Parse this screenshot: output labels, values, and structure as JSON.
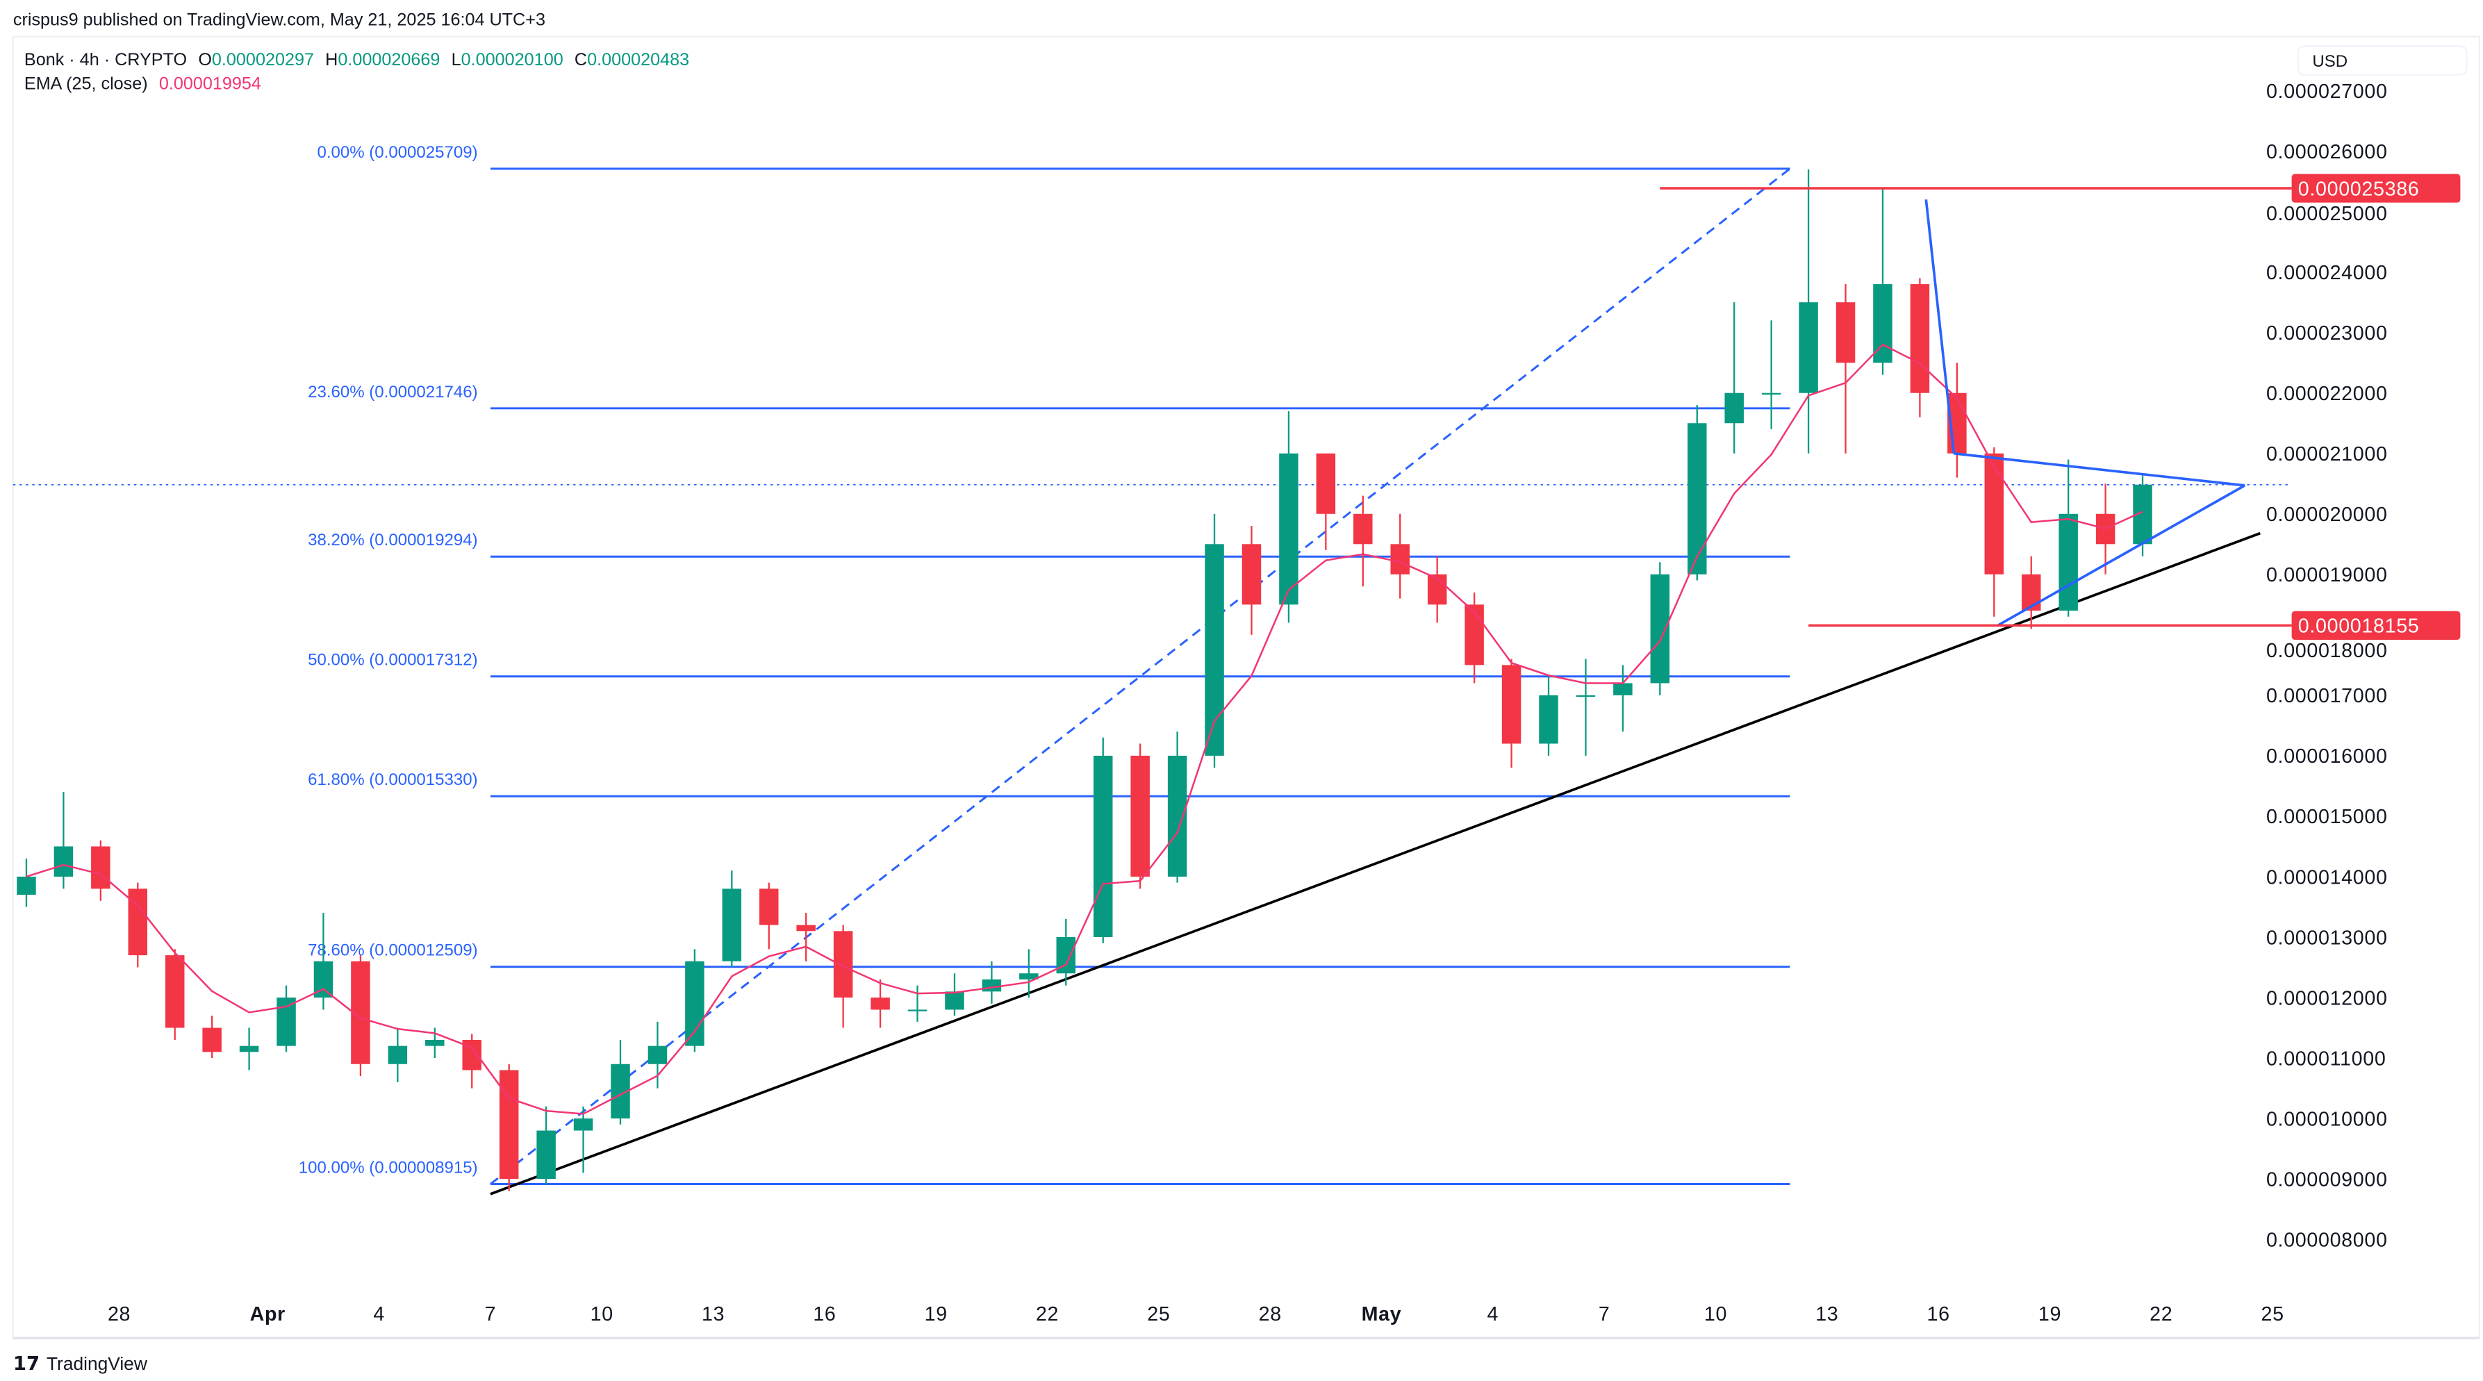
{
  "publish_line": "crispus9 published on TradingView.com, May 21, 2025 16:04 UTC+3",
  "legend": {
    "symbol": "Bonk · 4h · CRYPTO",
    "o_label": "O",
    "o": "0.000020297",
    "h_label": "H",
    "h": "0.000020669",
    "l_label": "L",
    "l": "0.000020100",
    "c_label": "C",
    "c": "0.000020483",
    "ema_label": "EMA (25, close)",
    "ema_value": "0.000019954"
  },
  "currency": "USD",
  "footer_logo": "TradingView",
  "colors": {
    "up": "#089981",
    "down": "#F23645",
    "ema": "#F23672",
    "fib": "#2962FF",
    "trend": "#000000",
    "level": "#F23645",
    "triangle": "#2962FF"
  },
  "chart_data": {
    "type": "candlestick",
    "title": "",
    "ylim": [
      7.5e-06,
      2.73e-05
    ],
    "xlim": [
      "2025-03-25",
      "2025-05-26"
    ],
    "y_ticks": [
      "0.000027000",
      "0.000026000",
      "0.000025000",
      "0.000024000",
      "0.000023000",
      "0.000022000",
      "0.000021000",
      "0.000020000",
      "0.000019000",
      "0.000018000",
      "0.000017000",
      "0.000016000",
      "0.000015000",
      "0.000014000",
      "0.000013000",
      "0.000012000",
      "0.000011000",
      "0.000010000",
      "0.000009000",
      "0.000008000"
    ],
    "x_ticks": [
      {
        "date": "2025-03-28",
        "label": "28"
      },
      {
        "date": "2025-04-01",
        "label": "Apr"
      },
      {
        "date": "2025-04-04",
        "label": "4"
      },
      {
        "date": "2025-04-07",
        "label": "7"
      },
      {
        "date": "2025-04-10",
        "label": "10"
      },
      {
        "date": "2025-04-13",
        "label": "13"
      },
      {
        "date": "2025-04-16",
        "label": "16"
      },
      {
        "date": "2025-04-19",
        "label": "19"
      },
      {
        "date": "2025-04-22",
        "label": "22"
      },
      {
        "date": "2025-04-25",
        "label": "25"
      },
      {
        "date": "2025-04-28",
        "label": "28"
      },
      {
        "date": "2025-05-01",
        "label": "May"
      },
      {
        "date": "2025-05-04",
        "label": "4"
      },
      {
        "date": "2025-05-07",
        "label": "7"
      },
      {
        "date": "2025-05-10",
        "label": "10"
      },
      {
        "date": "2025-05-13",
        "label": "13"
      },
      {
        "date": "2025-05-16",
        "label": "16"
      },
      {
        "date": "2025-05-19",
        "label": "19"
      },
      {
        "date": "2025-05-22",
        "label": "22"
      },
      {
        "date": "2025-05-25",
        "label": "25"
      }
    ],
    "candles_columns": [
      "date",
      "open",
      "high",
      "low",
      "close"
    ],
    "candles": [
      [
        "2025-03-25",
        1.37e-05,
        1.43e-05,
        1.35e-05,
        1.4e-05
      ],
      [
        "2025-03-26",
        1.4e-05,
        1.54e-05,
        1.38e-05,
        1.45e-05
      ],
      [
        "2025-03-27",
        1.45e-05,
        1.46e-05,
        1.36e-05,
        1.38e-05
      ],
      [
        "2025-03-28",
        1.38e-05,
        1.39e-05,
        1.25e-05,
        1.27e-05
      ],
      [
        "2025-03-29",
        1.27e-05,
        1.28e-05,
        1.13e-05,
        1.15e-05
      ],
      [
        "2025-03-30",
        1.15e-05,
        1.17e-05,
        1.1e-05,
        1.11e-05
      ],
      [
        "2025-03-31",
        1.11e-05,
        1.15e-05,
        1.08e-05,
        1.12e-05
      ],
      [
        "2025-04-01",
        1.12e-05,
        1.22e-05,
        1.11e-05,
        1.2e-05
      ],
      [
        "2025-04-02",
        1.2e-05,
        1.34e-05,
        1.18e-05,
        1.26e-05
      ],
      [
        "2025-04-03",
        1.26e-05,
        1.27e-05,
        1.07e-05,
        1.09e-05
      ],
      [
        "2025-04-04",
        1.09e-05,
        1.15e-05,
        1.06e-05,
        1.12e-05
      ],
      [
        "2025-04-05",
        1.12e-05,
        1.15e-05,
        1.1e-05,
        1.13e-05
      ],
      [
        "2025-04-06",
        1.13e-05,
        1.14e-05,
        1.05e-05,
        1.08e-05
      ],
      [
        "2025-04-07",
        1.08e-05,
        1.09e-05,
        8.8e-06,
        9e-06
      ],
      [
        "2025-04-08",
        9e-06,
        1.02e-05,
        8.9e-06,
        9.8e-06
      ],
      [
        "2025-04-09",
        9.8e-06,
        1.02e-05,
        9.1e-06,
        1e-05
      ],
      [
        "2025-04-10",
        1e-05,
        1.13e-05,
        9.9e-06,
        1.09e-05
      ],
      [
        "2025-04-11",
        1.09e-05,
        1.16e-05,
        1.05e-05,
        1.12e-05
      ],
      [
        "2025-04-12",
        1.12e-05,
        1.28e-05,
        1.11e-05,
        1.26e-05
      ],
      [
        "2025-04-13",
        1.26e-05,
        1.41e-05,
        1.25e-05,
        1.38e-05
      ],
      [
        "2025-04-14",
        1.38e-05,
        1.39e-05,
        1.28e-05,
        1.32e-05
      ],
      [
        "2025-04-15",
        1.32e-05,
        1.34e-05,
        1.26e-05,
        1.31e-05
      ],
      [
        "2025-04-16",
        1.31e-05,
        1.32e-05,
        1.15e-05,
        1.2e-05
      ],
      [
        "2025-04-17",
        1.2e-05,
        1.23e-05,
        1.15e-05,
        1.18e-05
      ],
      [
        "2025-04-18",
        1.18e-05,
        1.22e-05,
        1.16e-05,
        1.18e-05
      ],
      [
        "2025-04-19",
        1.18e-05,
        1.24e-05,
        1.17e-05,
        1.21e-05
      ],
      [
        "2025-04-20",
        1.21e-05,
        1.26e-05,
        1.19e-05,
        1.23e-05
      ],
      [
        "2025-04-21",
        1.23e-05,
        1.28e-05,
        1.2e-05,
        1.24e-05
      ],
      [
        "2025-04-22",
        1.24e-05,
        1.33e-05,
        1.22e-05,
        1.3e-05
      ],
      [
        "2025-04-23",
        1.3e-05,
        1.63e-05,
        1.29e-05,
        1.6e-05
      ],
      [
        "2025-04-24",
        1.6e-05,
        1.62e-05,
        1.38e-05,
        1.4e-05
      ],
      [
        "2025-04-25",
        1.4e-05,
        1.64e-05,
        1.39e-05,
        1.6e-05
      ],
      [
        "2025-04-26",
        1.6e-05,
        2e-05,
        1.58e-05,
        1.95e-05
      ],
      [
        "2025-04-27",
        1.95e-05,
        1.98e-05,
        1.8e-05,
        1.85e-05
      ],
      [
        "2025-04-28",
        1.85e-05,
        2.17e-05,
        1.82e-05,
        2.1e-05
      ],
      [
        "2025-04-29",
        2.1e-05,
        2.1e-05,
        1.94e-05,
        2e-05
      ],
      [
        "2025-04-30",
        2e-05,
        2.03e-05,
        1.88e-05,
        1.95e-05
      ],
      [
        "2025-05-01",
        1.95e-05,
        2e-05,
        1.86e-05,
        1.9e-05
      ],
      [
        "2025-05-02",
        1.9e-05,
        1.93e-05,
        1.82e-05,
        1.85e-05
      ],
      [
        "2025-05-03",
        1.85e-05,
        1.87e-05,
        1.72e-05,
        1.75e-05
      ],
      [
        "2025-05-04",
        1.75e-05,
        1.76e-05,
        1.58e-05,
        1.62e-05
      ],
      [
        "2025-05-05",
        1.62e-05,
        1.73e-05,
        1.6e-05,
        1.7e-05
      ],
      [
        "2025-05-06",
        1.7e-05,
        1.76e-05,
        1.6e-05,
        1.7e-05
      ],
      [
        "2025-05-07",
        1.7e-05,
        1.75e-05,
        1.64e-05,
        1.72e-05
      ],
      [
        "2025-05-08",
        1.72e-05,
        1.92e-05,
        1.7e-05,
        1.9e-05
      ],
      [
        "2025-05-09",
        1.9e-05,
        2.18e-05,
        1.89e-05,
        2.15e-05
      ],
      [
        "2025-05-10",
        2.15e-05,
        2.35e-05,
        2.1e-05,
        2.2e-05
      ],
      [
        "2025-05-11",
        2.2e-05,
        2.32e-05,
        2.14e-05,
        2.2e-05
      ],
      [
        "2025-05-12",
        2.2e-05,
        2.57e-05,
        2.1e-05,
        2.35e-05
      ],
      [
        "2025-05-13",
        2.35e-05,
        2.38e-05,
        2.1e-05,
        2.25e-05
      ],
      [
        "2025-05-14",
        2.25e-05,
        2.5386e-05,
        2.23e-05,
        2.38e-05
      ],
      [
        "2025-05-15",
        2.38e-05,
        2.39e-05,
        2.16e-05,
        2.2e-05
      ],
      [
        "2025-05-16",
        2.2e-05,
        2.25e-05,
        2.06e-05,
        2.1e-05
      ],
      [
        "2025-05-17",
        2.1e-05,
        2.11e-05,
        1.83e-05,
        1.9e-05
      ],
      [
        "2025-05-18",
        1.9e-05,
        1.93e-05,
        1.81e-05,
        1.84e-05
      ],
      [
        "2025-05-19",
        1.84e-05,
        2.09e-05,
        1.83e-05,
        2e-05
      ],
      [
        "2025-05-20",
        2e-05,
        2.05e-05,
        1.9e-05,
        1.95e-05
      ],
      [
        "2025-05-21",
        1.95e-05,
        2.0669e-05,
        1.93e-05,
        2.0483e-05
      ]
    ],
    "ema": {
      "period": 25,
      "source": "close"
    },
    "current_price": 2.0483e-05,
    "fib_retracement": {
      "start": {
        "date": "2025-04-07",
        "price": 8.915e-06
      },
      "end": {
        "date": "2025-05-12",
        "price": 2.5709e-05
      },
      "levels": [
        {
          "label": "0.00% (0.000025709)",
          "price": 2.5709e-05
        },
        {
          "label": "23.60% (0.000021746)",
          "price": 2.1746e-05
        },
        {
          "label": "38.20% (0.000019294)",
          "price": 1.9294e-05
        },
        {
          "label": "50.00% (0.000017312)",
          "price": 1.7312e-05
        },
        {
          "label": "61.80% (0.000015330)",
          "price": 1.533e-05
        },
        {
          "label": "78.60% (0.000012509)",
          "price": 1.2509e-05
        },
        {
          "label": "100.00% (0.000008915)",
          "price": 8.915e-06
        }
      ]
    },
    "horizontal_levels": [
      {
        "label": "0.000025386",
        "price": 2.5386e-05,
        "from": "2025-05-08T12:00"
      },
      {
        "label": "0.000018155",
        "price": 1.8155e-05,
        "from": "2025-05-12T12:00"
      }
    ],
    "trendline": {
      "from": {
        "date": "2025-04-07",
        "price": 8.75e-06
      },
      "to": {
        "date": "2025-05-24T16:00",
        "price": 1.968e-05
      }
    },
    "triangle": {
      "upper": {
        "from": {
          "date": "2025-05-16T10:00",
          "price": 2.1e-05
        },
        "to": {
          "date": "2025-05-24T06:00",
          "price": 2.047e-05
        }
      },
      "lower": {
        "from": {
          "date": "2025-05-17T14:00",
          "price": 1.815e-05
        },
        "to": {
          "date": "2025-05-24T06:00",
          "price": 2.047e-05
        }
      },
      "pole": {
        "from": {
          "date": "2025-05-15T16:00",
          "price": 2.52e-05
        },
        "to": {
          "date": "2025-05-16T10:00",
          "price": 2.1e-05
        }
      }
    }
  }
}
